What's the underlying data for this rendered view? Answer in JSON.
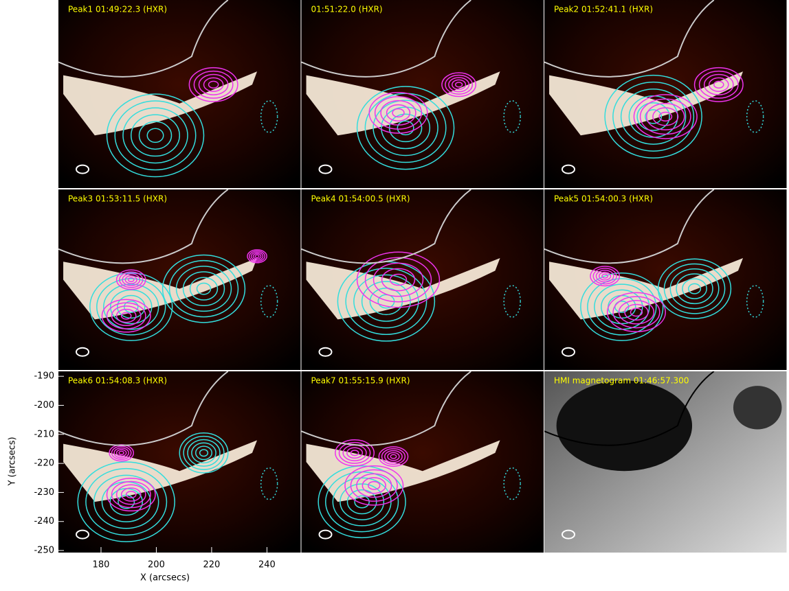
{
  "chart_data": {
    "type": "image-grid",
    "panels": [
      "Peak1 01:49:22.3 (HXR)",
      "01:51:22.0 (HXR)",
      "Peak2 01:52:41.1 (HXR)",
      "Peak3 01:53:11.5 (HXR)",
      "Peak4 01:54:00.5 (HXR)",
      "Peak5 01:54:00.3 (HXR)",
      "Peak6 01:54:08.3 (HXR)",
      "Peak7 01:55:15.9 (HXR)",
      "HMI magnetogram 01:46:57.300"
    ],
    "xlabel": "X (arcsecs)",
    "ylabel": "Y (arcsecs)",
    "xlim": [
      164.6,
      252.2
    ],
    "ylim": [
      -250.7,
      -188.3
    ],
    "xticks": [
      180,
      200,
      220,
      240
    ],
    "yticks": [
      -250,
      -240,
      -230,
      -220,
      -210,
      -200,
      -190
    ]
  }
}
